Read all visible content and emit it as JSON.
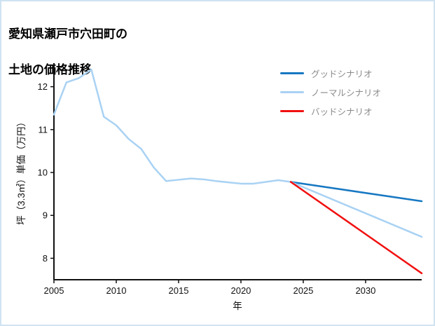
{
  "frame": {
    "border_color": "#cfe3f2",
    "background": "#ffffff"
  },
  "chart_data": {
    "type": "line",
    "title": "愛知県瀬戸市穴田町の土地の価格推移",
    "title_lines": [
      "愛知県瀬戸市穴田町の",
      "土地の価格推移"
    ],
    "xlabel": "年",
    "ylabel": "坪（3.3㎡）単価（万円）",
    "xlim": [
      2005,
      2034.5
    ],
    "ylim": [
      7.5,
      12.55
    ],
    "x_ticks": [
      2005,
      2010,
      2015,
      2020,
      2025,
      2030
    ],
    "y_ticks": [
      8,
      9,
      10,
      11,
      12
    ],
    "grid": false,
    "legend_position": "top-right",
    "axis_color": "#111111",
    "legend_text_color": "#8a8a8a",
    "series": [
      {
        "key": "history-line",
        "name": "",
        "in_legend": false,
        "color": "#a9d2f3",
        "x": [
          2005,
          2006,
          2007,
          2008,
          2009,
          2010,
          2011,
          2012,
          2013,
          2014,
          2015,
          2016,
          2017,
          2018,
          2019,
          2020,
          2021,
          2022,
          2023,
          2024
        ],
        "y": [
          11.35,
          12.1,
          12.2,
          12.4,
          11.3,
          11.1,
          10.78,
          10.55,
          10.12,
          9.8,
          9.83,
          9.86,
          9.84,
          9.8,
          9.77,
          9.74,
          9.74,
          9.78,
          9.82,
          9.78
        ]
      },
      {
        "key": "good-scenario-line",
        "name": "グッドシナリオ",
        "in_legend": true,
        "color": "#1778c2",
        "x": [
          2024,
          2034.5
        ],
        "y": [
          9.78,
          9.33
        ]
      },
      {
        "key": "normal-scenario-line",
        "name": "ノーマルシナリオ",
        "in_legend": true,
        "color": "#a9d2f3",
        "x": [
          2024,
          2034.5
        ],
        "y": [
          9.78,
          8.5
        ]
      },
      {
        "key": "bad-scenario-line",
        "name": "バッドシナリオ",
        "in_legend": true,
        "color": "#f11010",
        "x": [
          2024,
          2034.5
        ],
        "y": [
          9.78,
          7.65
        ]
      }
    ]
  }
}
